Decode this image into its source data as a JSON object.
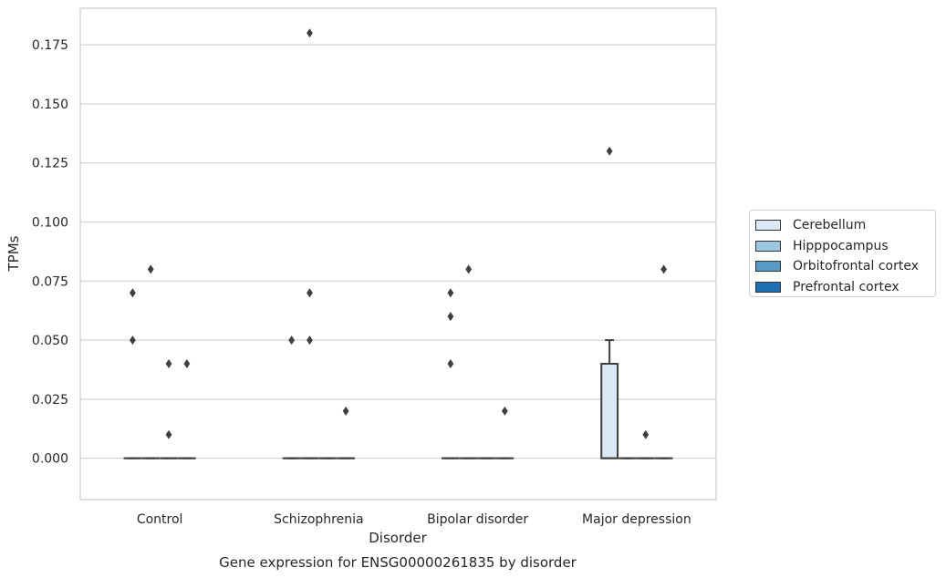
{
  "chart_data": {
    "type": "boxplot",
    "title": "Gene expression for ENSG00000261835 by disorder",
    "xlabel": "Disorder",
    "ylabel": "TPMs",
    "ylim": [
      -0.0175,
      0.1905
    ],
    "yticks": [
      0.0,
      0.025,
      0.05,
      0.075,
      0.1,
      0.125,
      0.15,
      0.175
    ],
    "ytick_labels": [
      "0.000",
      "0.025",
      "0.050",
      "0.075",
      "0.100",
      "0.125",
      "0.150",
      "0.175"
    ],
    "grid": "horizontal",
    "legend_position": "right",
    "categories": [
      "Control",
      "Schizophrenia",
      "Bipolar disorder",
      "Major depression"
    ],
    "series": [
      {
        "name": "Cerebellum",
        "color": "#dbe9f6",
        "boxes": [
          {
            "q1": 0,
            "median": 0,
            "q3": 0,
            "whisker_low": 0,
            "whisker_high": 0,
            "outliers": [
              0.05,
              0.07
            ]
          },
          {
            "q1": 0,
            "median": 0,
            "q3": 0,
            "whisker_low": 0,
            "whisker_high": 0,
            "outliers": [
              0.05
            ]
          },
          {
            "q1": 0,
            "median": 0,
            "q3": 0,
            "whisker_low": 0,
            "whisker_high": 0,
            "outliers": [
              0.04,
              0.06,
              0.07
            ]
          },
          {
            "q1": 0,
            "median": 0,
            "q3": 0.04,
            "whisker_low": 0,
            "whisker_high": 0.05,
            "outliers": [
              0.13
            ]
          }
        ]
      },
      {
        "name": "Hipppocampus",
        "color": "#9ac8e0",
        "boxes": [
          {
            "q1": 0,
            "median": 0,
            "q3": 0,
            "whisker_low": 0,
            "whisker_high": 0,
            "outliers": [
              0.08
            ]
          },
          {
            "q1": 0,
            "median": 0,
            "q3": 0,
            "whisker_low": 0,
            "whisker_high": 0,
            "outliers": [
              0.05,
              0.07,
              0.18
            ]
          },
          {
            "q1": 0,
            "median": 0,
            "q3": 0,
            "whisker_low": 0,
            "whisker_high": 0,
            "outliers": [
              0.08
            ]
          },
          {
            "q1": 0,
            "median": 0,
            "q3": 0,
            "whisker_low": 0,
            "whisker_high": 0,
            "outliers": []
          }
        ]
      },
      {
        "name": "Orbitofrontal cortex",
        "color": "#5a9ac6",
        "boxes": [
          {
            "q1": 0,
            "median": 0,
            "q3": 0,
            "whisker_low": 0,
            "whisker_high": 0,
            "outliers": [
              0.01,
              0.04
            ]
          },
          {
            "q1": 0,
            "median": 0,
            "q3": 0,
            "whisker_low": 0,
            "whisker_high": 0,
            "outliers": []
          },
          {
            "q1": 0,
            "median": 0,
            "q3": 0,
            "whisker_low": 0,
            "whisker_high": 0,
            "outliers": []
          },
          {
            "q1": 0,
            "median": 0,
            "q3": 0,
            "whisker_low": 0,
            "whisker_high": 0,
            "outliers": [
              0.01
            ]
          }
        ]
      },
      {
        "name": "Prefrontal cortex",
        "color": "#2070b4",
        "boxes": [
          {
            "q1": 0,
            "median": 0,
            "q3": 0,
            "whisker_low": 0,
            "whisker_high": 0,
            "outliers": [
              0.04
            ]
          },
          {
            "q1": 0,
            "median": 0,
            "q3": 0,
            "whisker_low": 0,
            "whisker_high": 0,
            "outliers": [
              0.02
            ]
          },
          {
            "q1": 0,
            "median": 0,
            "q3": 0,
            "whisker_low": 0,
            "whisker_high": 0,
            "outliers": [
              0.02
            ]
          },
          {
            "q1": 0,
            "median": 0,
            "q3": 0,
            "whisker_low": 0,
            "whisker_high": 0,
            "outliers": [
              0.08
            ]
          }
        ]
      }
    ]
  }
}
